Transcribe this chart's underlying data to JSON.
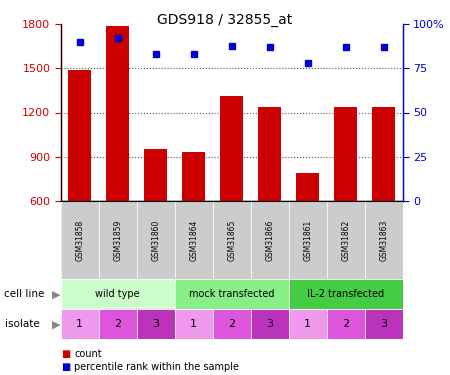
{
  "title": "GDS918 / 32855_at",
  "samples": [
    "GSM31858",
    "GSM31859",
    "GSM31860",
    "GSM31864",
    "GSM31865",
    "GSM31866",
    "GSM31861",
    "GSM31862",
    "GSM31863"
  ],
  "counts": [
    1490,
    1790,
    950,
    930,
    1310,
    1240,
    790,
    1240,
    1240
  ],
  "percentiles": [
    90,
    92,
    83,
    83,
    88,
    87,
    78,
    87,
    87
  ],
  "ylim_left": [
    600,
    1800
  ],
  "ylim_right": [
    0,
    100
  ],
  "yticks_left": [
    600,
    900,
    1200,
    1500,
    1800
  ],
  "yticks_right": [
    0,
    25,
    50,
    75,
    100
  ],
  "cell_lines": [
    {
      "label": "wild type",
      "start": 0,
      "end": 3,
      "color": "#ccffcc"
    },
    {
      "label": "mock transfected",
      "start": 3,
      "end": 6,
      "color": "#88ee88"
    },
    {
      "label": "IL-2 transfected",
      "start": 6,
      "end": 9,
      "color": "#44cc44"
    }
  ],
  "isolates": [
    1,
    2,
    3,
    1,
    2,
    3,
    1,
    2,
    3
  ],
  "isolate_colors": [
    "#ee99ee",
    "#dd55dd",
    "#bb33bb",
    "#ee99ee",
    "#dd55dd",
    "#bb33bb",
    "#ee99ee",
    "#dd55dd",
    "#bb33bb"
  ],
  "bar_color": "#cc0000",
  "dot_color": "#0000cc",
  "grid_color": "#555555",
  "label_color_left": "#cc0000",
  "label_color_right": "#0000cc",
  "sample_bg": "#cccccc",
  "legend_items": [
    {
      "color": "#cc0000",
      "label": "count"
    },
    {
      "color": "#0000cc",
      "label": "percentile rank within the sample"
    }
  ]
}
